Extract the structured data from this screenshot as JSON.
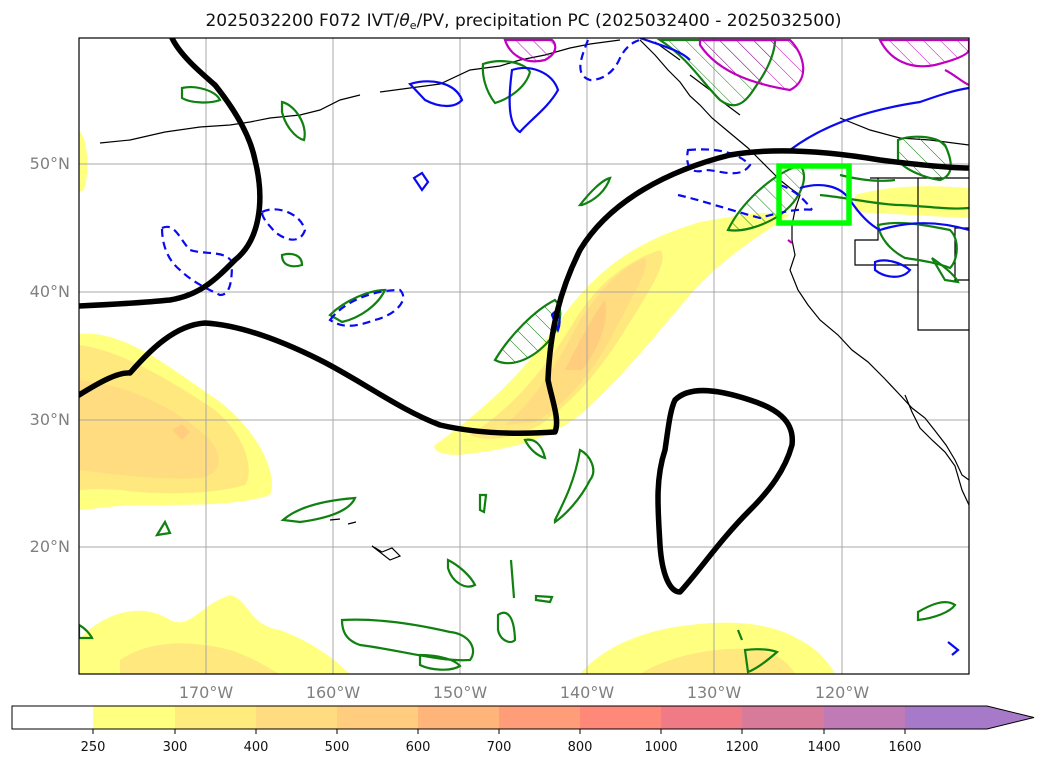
{
  "title": {
    "prefix": "2025032200 F072 IVT/",
    "theta": "θ",
    "theta_sub": "e",
    "suffix": "/PV, precipitation PC (2025032400 - 2025032500)"
  },
  "map": {
    "lat_labels": [
      "50°N",
      "40°N",
      "30°N",
      "20°N"
    ],
    "lon_labels": [
      "170°W",
      "160°W",
      "150°W",
      "140°W",
      "130°W",
      "120°W"
    ],
    "extent": {
      "lon": [
        -180,
        -110
      ],
      "lat": [
        10,
        60
      ]
    },
    "highlight_box_color": "#00ff00"
  },
  "colorbar": {
    "ticks": [
      "250",
      "300",
      "400",
      "500",
      "600",
      "700",
      "800",
      "1000",
      "1200",
      "1400",
      "1600"
    ],
    "colors": [
      "#ffff80",
      "#ffec7d",
      "#ffdc80",
      "#ffcd7d",
      "#ffb57a",
      "#ff9d78",
      "#ff8878",
      "#f07a85",
      "#d87a9a",
      "#c07ab5",
      "#a67ac9"
    ],
    "extend": "max"
  }
}
